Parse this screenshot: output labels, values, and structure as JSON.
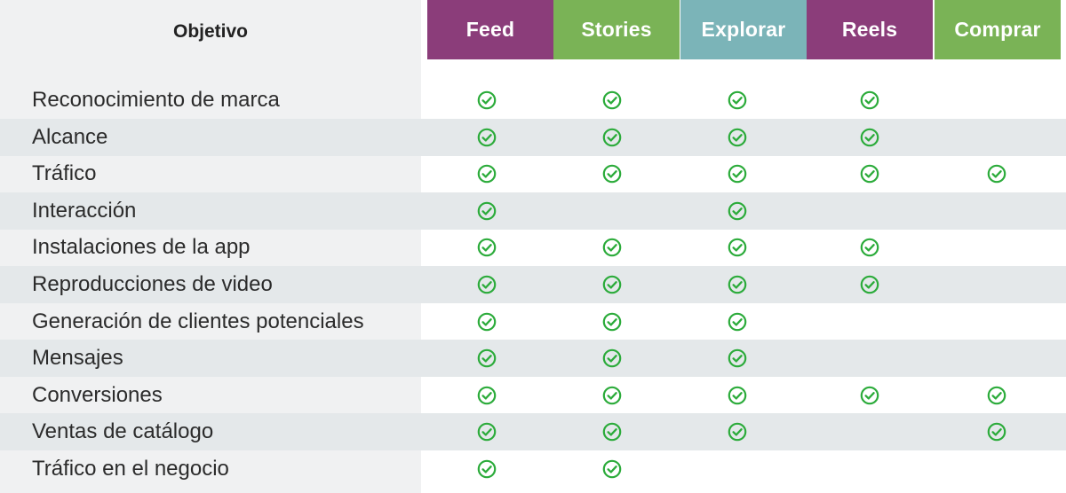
{
  "header": {
    "objective_label": "Objetivo",
    "columns": [
      {
        "label": "Feed",
        "color": "#8b3d7a"
      },
      {
        "label": "Stories",
        "color": "#7ab356"
      },
      {
        "label": "Explorar",
        "color": "#7bb4b8"
      },
      {
        "label": "Reels",
        "color": "#8b3d7a"
      },
      {
        "label": "Comprar",
        "color": "#7ab356"
      }
    ]
  },
  "check_color": "#2bab3a",
  "check_icon": "check-circle-icon",
  "rows": [
    {
      "label": "Reconocimiento de marca",
      "checks": [
        true,
        true,
        true,
        true,
        false
      ]
    },
    {
      "label": "Alcance",
      "checks": [
        true,
        true,
        true,
        true,
        false
      ]
    },
    {
      "label": "Tráfico",
      "checks": [
        true,
        true,
        true,
        true,
        true
      ]
    },
    {
      "label": "Interacción",
      "checks": [
        true,
        false,
        true,
        false,
        false
      ]
    },
    {
      "label": "Instalaciones de la app",
      "checks": [
        true,
        true,
        true,
        true,
        false
      ]
    },
    {
      "label": "Reproducciones de video",
      "checks": [
        true,
        true,
        true,
        true,
        false
      ]
    },
    {
      "label": "Generación de clientes potenciales",
      "checks": [
        true,
        true,
        true,
        false,
        false
      ]
    },
    {
      "label": "Mensajes",
      "checks": [
        true,
        true,
        true,
        false,
        false
      ]
    },
    {
      "label": "Conversiones",
      "checks": [
        true,
        true,
        true,
        true,
        true
      ]
    },
    {
      "label": "Ventas de catálogo",
      "checks": [
        true,
        true,
        true,
        false,
        true
      ]
    },
    {
      "label": "Tráfico en el negocio",
      "checks": [
        true,
        true,
        false,
        false,
        false
      ]
    }
  ]
}
